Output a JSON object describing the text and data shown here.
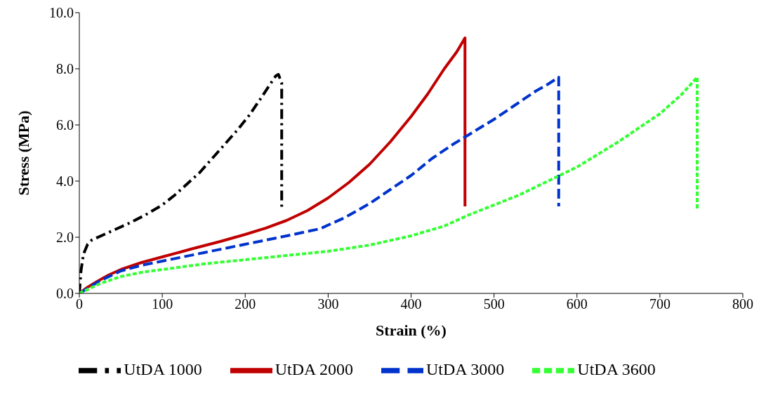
{
  "chart_data": {
    "type": "line",
    "xlabel": "Strain (%)",
    "ylabel": "Stress  (MPa)",
    "xlim": [
      0,
      800
    ],
    "xticks": [
      0,
      100,
      200,
      300,
      400,
      500,
      600,
      700,
      800
    ],
    "ylim": [
      0,
      10
    ],
    "yticks": [
      {
        "value": 0,
        "label": "0.0"
      },
      {
        "value": 2,
        "label": "2.0"
      },
      {
        "value": 4,
        "label": "4.0"
      },
      {
        "value": 6,
        "label": "6.0"
      },
      {
        "value": 8,
        "label": "8.0"
      },
      {
        "value": 10,
        "label": "10.0"
      }
    ],
    "grid": false,
    "legend": "bottom",
    "marker": "none",
    "series": [
      {
        "name": "UtDA 1000",
        "color": "#000000",
        "line_style": "dashdot",
        "x": [
          0,
          2,
          5,
          10,
          15,
          30,
          45,
          60,
          80,
          100,
          115,
          130,
          145,
          160,
          175,
          190,
          205,
          220,
          230,
          237,
          240,
          244,
          244
        ],
        "values": [
          0,
          0.8,
          1.4,
          1.75,
          1.9,
          2.1,
          2.3,
          2.5,
          2.8,
          3.15,
          3.5,
          3.9,
          4.3,
          4.8,
          5.3,
          5.8,
          6.35,
          7.0,
          7.45,
          7.75,
          7.8,
          7.5,
          3.0
        ]
      },
      {
        "name": "UtDA 2000",
        "color": "#c00000",
        "line_style": "solid",
        "x": [
          0,
          10,
          20,
          35,
          50,
          75,
          100,
          135,
          170,
          200,
          225,
          250,
          275,
          300,
          325,
          350,
          375,
          400,
          420,
          440,
          455,
          465,
          465
        ],
        "values": [
          0,
          0.22,
          0.4,
          0.65,
          0.85,
          1.1,
          1.3,
          1.58,
          1.85,
          2.1,
          2.33,
          2.6,
          2.95,
          3.4,
          3.95,
          4.6,
          5.4,
          6.3,
          7.1,
          8.0,
          8.6,
          9.1,
          3.1
        ]
      },
      {
        "name": "UtDA 3000",
        "color": "#0033cc",
        "line_style": "dashed",
        "x": [
          0,
          25,
          50,
          75,
          100,
          150,
          200,
          250,
          290,
          320,
          350,
          375,
          400,
          425,
          450,
          475,
          500,
          525,
          550,
          565,
          578,
          578
        ],
        "values": [
          0,
          0.45,
          0.8,
          1.0,
          1.15,
          1.45,
          1.75,
          2.05,
          2.3,
          2.7,
          3.2,
          3.7,
          4.2,
          4.8,
          5.3,
          5.75,
          6.2,
          6.7,
          7.2,
          7.45,
          7.7,
          3.1
        ]
      },
      {
        "name": "UtDA 3600",
        "color": "#33ff33",
        "line_style": "dotted",
        "x": [
          0,
          25,
          50,
          75,
          100,
          150,
          200,
          250,
          300,
          350,
          400,
          440,
          470,
          500,
          530,
          565,
          600,
          625,
          650,
          675,
          700,
          725,
          745,
          745
        ],
        "values": [
          0,
          0.35,
          0.6,
          0.75,
          0.85,
          1.05,
          1.2,
          1.35,
          1.5,
          1.72,
          2.05,
          2.4,
          2.8,
          3.15,
          3.5,
          4.0,
          4.5,
          4.95,
          5.4,
          5.9,
          6.4,
          7.05,
          7.7,
          3.0
        ]
      }
    ]
  }
}
